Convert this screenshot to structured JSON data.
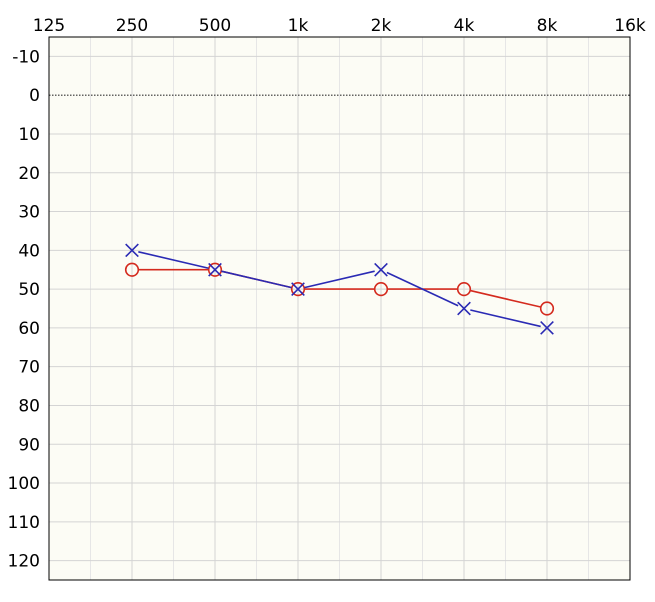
{
  "chart_data": {
    "type": "line",
    "title": "",
    "xlabel": "",
    "ylabel": "",
    "x_scale": "log2",
    "x_ticks": [
      "125",
      "250",
      "500",
      "1k",
      "2k",
      "4k",
      "8k",
      "16k"
    ],
    "x_tick_values": [
      125,
      250,
      500,
      1000,
      2000,
      4000,
      8000,
      16000
    ],
    "y_ticks": [
      "-10",
      "0",
      "10",
      "20",
      "30",
      "40",
      "50",
      "60",
      "70",
      "80",
      "90",
      "100",
      "110",
      "120"
    ],
    "y_tick_values": [
      -10,
      0,
      10,
      20,
      30,
      40,
      50,
      60,
      70,
      80,
      90,
      100,
      110,
      120
    ],
    "xlim": [
      125,
      16000
    ],
    "ylim": [
      -15,
      125
    ],
    "y_inverted": true,
    "grid": true,
    "reference_line": {
      "y": 0,
      "style": "dotted",
      "color": "#333333"
    },
    "colors": {
      "background": "#fcfcf5",
      "grid_major": "#d4d4d4",
      "grid_minor": "#e6e6e6",
      "axis": "#000000"
    },
    "series": [
      {
        "marker": "circle",
        "color": "#d42a1e",
        "x": [
          250,
          500,
          1000,
          2000,
          4000,
          8000
        ],
        "values": [
          45,
          45,
          50,
          50,
          50,
          55
        ]
      },
      {
        "marker": "cross",
        "color": "#2a2ab4",
        "x": [
          250,
          500,
          1000,
          2000,
          4000,
          8000
        ],
        "values": [
          40,
          45,
          50,
          45,
          55,
          60
        ]
      }
    ]
  }
}
